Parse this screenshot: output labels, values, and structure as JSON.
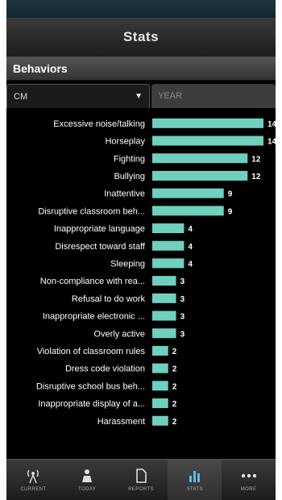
{
  "header": {
    "title": "Stats"
  },
  "section": {
    "title": "Behaviors"
  },
  "filters": {
    "selected_code": "CM",
    "year_placeholder": "YEAR"
  },
  "chart_data": {
    "type": "bar",
    "orientation": "horizontal",
    "bar_color": "#6fd0bd",
    "categories": [
      "Excessive noise/talking",
      "Horseplay",
      "Fighting",
      "Bullying",
      "Inattentive",
      "Disruptive classroom beh...",
      "Inappropriate language",
      "Disrespect toward staff",
      "Sleeping",
      "Non-compliance with rea...",
      "Refusal to do work",
      "Inappropriate electronic ...",
      "Overly active",
      "Violation of classroom rules",
      "Dress code violation",
      "Disruptive school bus beh...",
      "Inappropriate display of a...",
      "Harassment"
    ],
    "values": [
      14,
      14,
      12,
      12,
      9,
      9,
      4,
      4,
      4,
      3,
      3,
      3,
      3,
      2,
      2,
      2,
      2,
      2
    ],
    "xlim": [
      0,
      14
    ]
  },
  "nav": {
    "items": [
      {
        "label": "CURRENT",
        "icon": "antenna-icon"
      },
      {
        "label": "TODAY",
        "icon": "person-icon"
      },
      {
        "label": "REPORTS",
        "icon": "document-icon"
      },
      {
        "label": "STATS",
        "icon": "bar-chart-icon"
      },
      {
        "label": "MORE",
        "icon": "more-icon"
      }
    ]
  }
}
